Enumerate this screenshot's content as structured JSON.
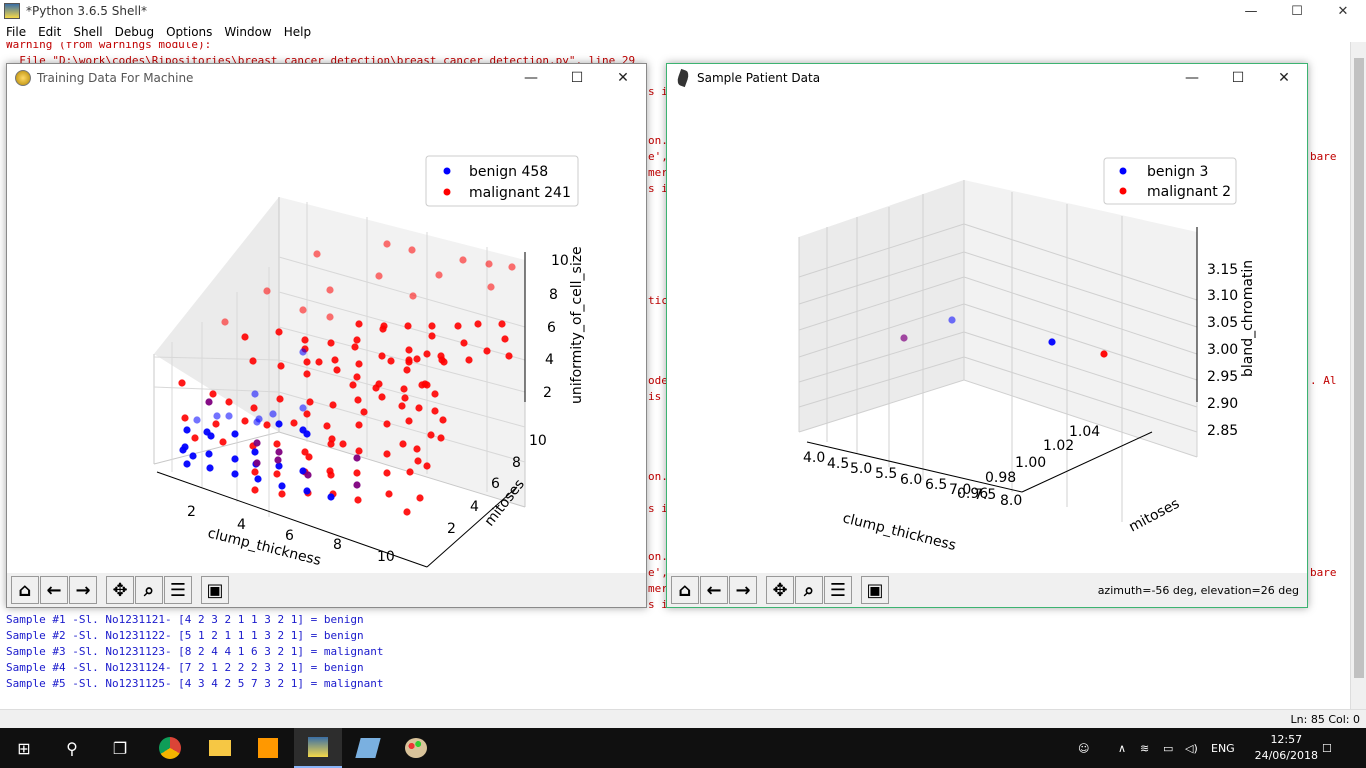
{
  "shell": {
    "title": "*Python 3.6.5 Shell*",
    "menu": [
      "File",
      "Edit",
      "Shell",
      "Debug",
      "Options",
      "Window",
      "Help"
    ],
    "error_lines": [
      {
        "text": "Warning (from warnings module):",
        "top": 0
      },
      {
        "text": "  File \"D:\\work\\codes\\Ripositories\\breast_cancer_detection\\breast_cancer_detection.py\", line 29",
        "top": 12
      }
    ],
    "side_fragments": [
      {
        "text": "s i",
        "left": 648,
        "top": 43
      },
      {
        "text": "on.",
        "left": 648,
        "top": 92
      },
      {
        "text": "e',",
        "left": 648,
        "top": 108
      },
      {
        "text": "mer",
        "left": 648,
        "top": 124
      },
      {
        "text": "s i",
        "left": 648,
        "top": 140
      },
      {
        "text": "tic",
        "left": 648,
        "top": 252
      },
      {
        "text": "ode",
        "left": 648,
        "top": 332
      },
      {
        "text": "is",
        "left": 648,
        "top": 348
      },
      {
        "text": "on.",
        "left": 648,
        "top": 428
      },
      {
        "text": "s i",
        "left": 648,
        "top": 460
      },
      {
        "text": "on.",
        "left": 648,
        "top": 508
      },
      {
        "text": "e',",
        "left": 648,
        "top": 524
      },
      {
        "text": "mer",
        "left": 648,
        "top": 540
      },
      {
        "text": "s i",
        "left": 648,
        "top": 556
      },
      {
        "text": "bare",
        "left": 1310,
        "top": 108
      },
      {
        "text": ". Al",
        "left": 1310,
        "top": 332
      },
      {
        "text": "bare",
        "left": 1310,
        "top": 524
      }
    ],
    "output_lines": [
      "Sample #1 -Sl. No1231121- [4 2 3 2 1 1 3 2 1] = benign",
      "Sample #2 -Sl. No1231122- [5 1 2 1 1 1 3 2 1] = benign",
      "Sample #3 -Sl. No1231123- [8 2 4 4 1 6 3 2 1] = malignant",
      "Sample #4 -Sl. No1231124- [7 2 1 2 2 2 3 2 1] = benign",
      "Sample #5 -Sl. No1231125- [4 3 4 2 5 7 3 2 1] = malignant"
    ],
    "status": "Ln: 85   Col: 0"
  },
  "window_controls": {
    "minimize": "—",
    "maximize": "☐",
    "close": "✕"
  },
  "training_window": {
    "title": "Training Data For Machine",
    "legend": [
      "benign 458",
      "malignant 241"
    ],
    "xlabel": "clump_thickness",
    "ylabel": "mitoses",
    "zlabel": "uniformity_of_cell_size",
    "xticks": [
      "2",
      "4",
      "6",
      "8",
      "10"
    ],
    "yticks": [
      "2",
      "4",
      "6",
      "8",
      "10"
    ],
    "zticks": [
      "2",
      "4",
      "6",
      "8",
      "10"
    ]
  },
  "sample_window": {
    "title": "Sample Patient Data",
    "legend": [
      "benign 3",
      "malignant 2"
    ],
    "xlabel": "clump_thickness",
    "ylabel": "mitoses",
    "zlabel": "bland_chromatin",
    "xticks": [
      "4.0",
      "4.5",
      "5.0",
      "5.5",
      "6.0",
      "6.5",
      "7.0",
      "7.5",
      "8.0"
    ],
    "yticks": [
      "0.96",
      "0.98",
      "1.00",
      "1.02",
      "1.04"
    ],
    "zticks": [
      "3.15",
      "3.10",
      "3.05",
      "3.00",
      "2.95",
      "2.90",
      "2.85"
    ],
    "coords": "azimuth=-56 deg, elevation=26 deg"
  },
  "toolbar_icons": [
    "home-icon",
    "back-arrow-icon",
    "forward-arrow-icon",
    "pan-icon",
    "zoom-icon",
    "configure-subplots-icon",
    "save-icon"
  ],
  "colors": {
    "benign": "#0000ff",
    "malignant": "#ff0000",
    "error_text": "#c00000",
    "output_text": "#1a1acc"
  },
  "taskbar": {
    "clock_time": "12:57",
    "clock_date": "24/06/2018",
    "language": "ENG"
  }
}
